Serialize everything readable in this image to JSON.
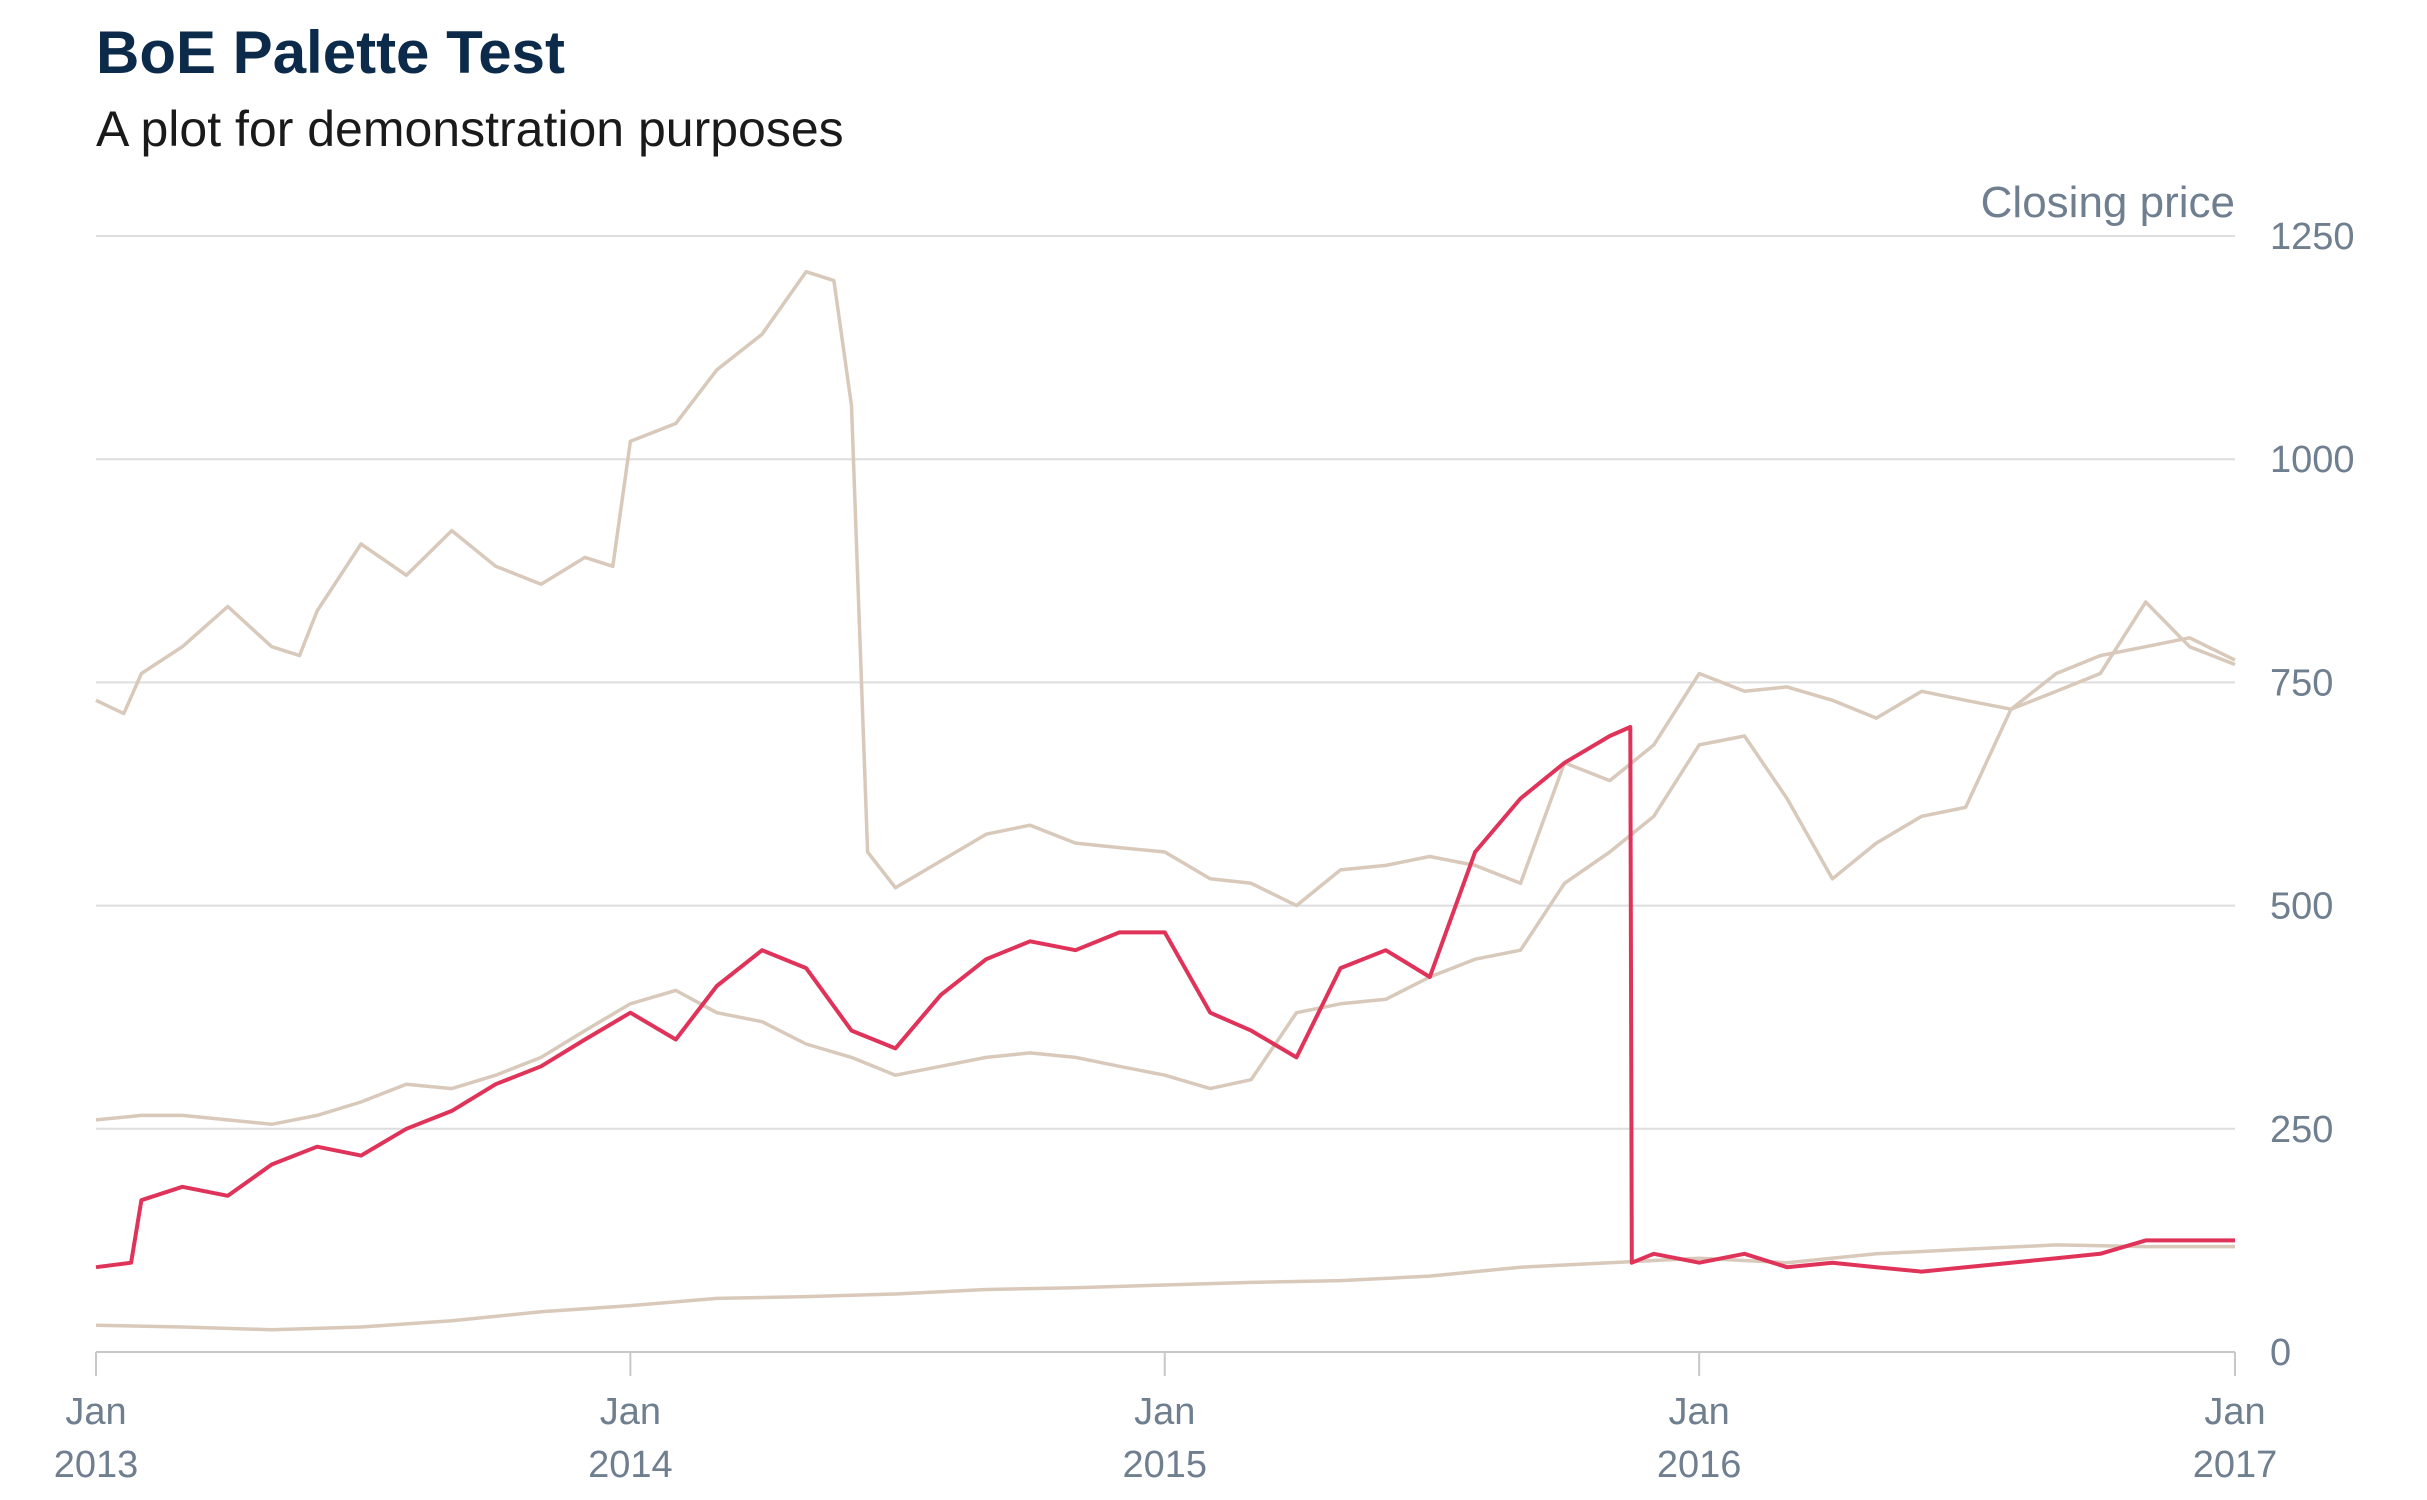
{
  "title": "BoE Palette Test",
  "subtitle": "A plot for demonstration purposes",
  "colors": {
    "highlight": "#e0335a",
    "muted": "#d8c9bb",
    "grid": "#dedede",
    "text": "#6f7f8f",
    "title": "#0c2a4a"
  },
  "chart_data": {
    "type": "line",
    "title": "BoE Palette Test",
    "subtitle": "A plot for demonstration purposes",
    "ylabel": "Closing price",
    "ylim": [
      0,
      1250
    ],
    "yticks": [
      0,
      250,
      500,
      750,
      1000,
      1250
    ],
    "xlim": [
      "2013-01-01",
      "2017-01-01"
    ],
    "xticks": [
      {
        "date": "2013-01-01",
        "label1": "Jan",
        "label2": "2013"
      },
      {
        "date": "2014-01-01",
        "label1": "Jan",
        "label2": "2014"
      },
      {
        "date": "2015-01-01",
        "label1": "Jan",
        "label2": "2015"
      },
      {
        "date": "2016-01-01",
        "label1": "Jan",
        "label2": "2016"
      },
      {
        "date": "2017-01-01",
        "label1": "Jan",
        "label2": "2017"
      }
    ],
    "grid": true,
    "y_axis_position": "right",
    "series": [
      {
        "highlight": false,
        "points": [
          [
            "2013-01-01",
            730
          ],
          [
            "2013-01-20",
            715
          ],
          [
            "2013-02-01",
            760
          ],
          [
            "2013-03-01",
            790
          ],
          [
            "2013-04-01",
            835
          ],
          [
            "2013-05-01",
            790
          ],
          [
            "2013-05-20",
            780
          ],
          [
            "2013-06-01",
            830
          ],
          [
            "2013-07-01",
            905
          ],
          [
            "2013-08-01",
            870
          ],
          [
            "2013-09-01",
            920
          ],
          [
            "2013-10-01",
            880
          ],
          [
            "2013-11-01",
            860
          ],
          [
            "2013-12-01",
            890
          ],
          [
            "2013-12-20",
            880
          ],
          [
            "2014-01-01",
            1020
          ],
          [
            "2014-02-01",
            1040
          ],
          [
            "2014-03-01",
            1100
          ],
          [
            "2014-04-01",
            1140
          ],
          [
            "2014-05-01",
            1210
          ],
          [
            "2014-05-20",
            1200
          ],
          [
            "2014-06-01",
            1060
          ],
          [
            "2014-06-12",
            560
          ],
          [
            "2014-07-01",
            520
          ],
          [
            "2014-08-01",
            550
          ],
          [
            "2014-09-01",
            580
          ],
          [
            "2014-10-01",
            590
          ],
          [
            "2014-11-01",
            570
          ],
          [
            "2014-12-01",
            565
          ],
          [
            "2015-01-01",
            560
          ],
          [
            "2015-02-01",
            530
          ],
          [
            "2015-03-01",
            525
          ],
          [
            "2015-04-01",
            500
          ],
          [
            "2015-05-01",
            540
          ],
          [
            "2015-06-01",
            545
          ],
          [
            "2015-07-01",
            555
          ],
          [
            "2015-08-01",
            545
          ],
          [
            "2015-09-01",
            525
          ],
          [
            "2015-10-01",
            660
          ],
          [
            "2015-11-01",
            640
          ],
          [
            "2015-12-01",
            680
          ],
          [
            "2016-01-01",
            760
          ],
          [
            "2016-02-01",
            740
          ],
          [
            "2016-03-01",
            745
          ],
          [
            "2016-04-01",
            730
          ],
          [
            "2016-05-01",
            710
          ],
          [
            "2016-06-01",
            740
          ],
          [
            "2016-07-01",
            730
          ],
          [
            "2016-08-01",
            720
          ],
          [
            "2016-09-01",
            760
          ],
          [
            "2016-10-01",
            780
          ],
          [
            "2016-11-01",
            790
          ],
          [
            "2016-12-01",
            800
          ],
          [
            "2017-01-01",
            775
          ]
        ]
      },
      {
        "highlight": false,
        "points": [
          [
            "2013-01-01",
            260
          ],
          [
            "2013-02-01",
            265
          ],
          [
            "2013-03-01",
            265
          ],
          [
            "2013-04-01",
            260
          ],
          [
            "2013-05-01",
            255
          ],
          [
            "2013-06-01",
            265
          ],
          [
            "2013-07-01",
            280
          ],
          [
            "2013-08-01",
            300
          ],
          [
            "2013-09-01",
            295
          ],
          [
            "2013-10-01",
            310
          ],
          [
            "2013-11-01",
            330
          ],
          [
            "2013-12-01",
            360
          ],
          [
            "2014-01-01",
            390
          ],
          [
            "2014-02-01",
            405
          ],
          [
            "2014-03-01",
            380
          ],
          [
            "2014-04-01",
            370
          ],
          [
            "2014-05-01",
            345
          ],
          [
            "2014-06-01",
            330
          ],
          [
            "2014-07-01",
            310
          ],
          [
            "2014-08-01",
            320
          ],
          [
            "2014-09-01",
            330
          ],
          [
            "2014-10-01",
            335
          ],
          [
            "2014-11-01",
            330
          ],
          [
            "2014-12-01",
            320
          ],
          [
            "2015-01-01",
            310
          ],
          [
            "2015-02-01",
            295
          ],
          [
            "2015-03-01",
            305
          ],
          [
            "2015-04-01",
            380
          ],
          [
            "2015-05-01",
            390
          ],
          [
            "2015-06-01",
            395
          ],
          [
            "2015-07-01",
            420
          ],
          [
            "2015-08-01",
            440
          ],
          [
            "2015-09-01",
            450
          ],
          [
            "2015-10-01",
            525
          ],
          [
            "2015-11-01",
            560
          ],
          [
            "2015-12-01",
            600
          ],
          [
            "2016-01-01",
            680
          ],
          [
            "2016-02-01",
            690
          ],
          [
            "2016-03-01",
            620
          ],
          [
            "2016-04-01",
            530
          ],
          [
            "2016-05-01",
            570
          ],
          [
            "2016-06-01",
            600
          ],
          [
            "2016-07-01",
            610
          ],
          [
            "2016-08-01",
            720
          ],
          [
            "2016-09-01",
            740
          ],
          [
            "2016-10-01",
            760
          ],
          [
            "2016-11-01",
            840
          ],
          [
            "2016-12-01",
            790
          ],
          [
            "2017-01-01",
            770
          ]
        ]
      },
      {
        "highlight": false,
        "points": [
          [
            "2013-01-01",
            30
          ],
          [
            "2013-03-01",
            28
          ],
          [
            "2013-05-01",
            25
          ],
          [
            "2013-07-01",
            28
          ],
          [
            "2013-09-01",
            35
          ],
          [
            "2013-11-01",
            45
          ],
          [
            "2014-01-01",
            52
          ],
          [
            "2014-03-01",
            60
          ],
          [
            "2014-05-01",
            62
          ],
          [
            "2014-07-01",
            65
          ],
          [
            "2014-09-01",
            70
          ],
          [
            "2014-11-01",
            72
          ],
          [
            "2015-01-01",
            75
          ],
          [
            "2015-03-01",
            78
          ],
          [
            "2015-05-01",
            80
          ],
          [
            "2015-07-01",
            85
          ],
          [
            "2015-09-01",
            95
          ],
          [
            "2015-11-01",
            100
          ],
          [
            "2016-01-01",
            105
          ],
          [
            "2016-03-01",
            100
          ],
          [
            "2016-05-01",
            110
          ],
          [
            "2016-07-01",
            115
          ],
          [
            "2016-09-01",
            120
          ],
          [
            "2016-11-01",
            118
          ],
          [
            "2017-01-01",
            118
          ]
        ]
      },
      {
        "highlight": true,
        "points": [
          [
            "2013-01-01",
            95
          ],
          [
            "2013-01-25",
            100
          ],
          [
            "2013-02-01",
            170
          ],
          [
            "2013-03-01",
            185
          ],
          [
            "2013-04-01",
            175
          ],
          [
            "2013-05-01",
            210
          ],
          [
            "2013-06-01",
            230
          ],
          [
            "2013-07-01",
            220
          ],
          [
            "2013-08-01",
            250
          ],
          [
            "2013-09-01",
            270
          ],
          [
            "2013-10-01",
            300
          ],
          [
            "2013-11-01",
            320
          ],
          [
            "2013-12-01",
            350
          ],
          [
            "2014-01-01",
            380
          ],
          [
            "2014-02-01",
            350
          ],
          [
            "2014-03-01",
            410
          ],
          [
            "2014-04-01",
            450
          ],
          [
            "2014-05-01",
            430
          ],
          [
            "2014-06-01",
            360
          ],
          [
            "2014-07-01",
            340
          ],
          [
            "2014-08-01",
            400
          ],
          [
            "2014-09-01",
            440
          ],
          [
            "2014-10-01",
            460
          ],
          [
            "2014-11-01",
            450
          ],
          [
            "2014-12-01",
            470
          ],
          [
            "2015-01-01",
            470
          ],
          [
            "2015-02-01",
            380
          ],
          [
            "2015-03-01",
            360
          ],
          [
            "2015-04-01",
            330
          ],
          [
            "2015-05-01",
            430
          ],
          [
            "2015-06-01",
            450
          ],
          [
            "2015-07-01",
            420
          ],
          [
            "2015-08-01",
            560
          ],
          [
            "2015-09-01",
            620
          ],
          [
            "2015-10-01",
            660
          ],
          [
            "2015-11-01",
            690
          ],
          [
            "2015-11-15",
            700
          ],
          [
            "2015-11-16",
            100
          ],
          [
            "2015-12-01",
            110
          ],
          [
            "2016-01-01",
            100
          ],
          [
            "2016-02-01",
            110
          ],
          [
            "2016-03-01",
            95
          ],
          [
            "2016-04-01",
            100
          ],
          [
            "2016-05-01",
            95
          ],
          [
            "2016-06-01",
            90
          ],
          [
            "2016-07-01",
            95
          ],
          [
            "2016-08-01",
            100
          ],
          [
            "2016-09-01",
            105
          ],
          [
            "2016-10-01",
            110
          ],
          [
            "2016-11-01",
            125
          ],
          [
            "2016-12-01",
            125
          ],
          [
            "2017-01-01",
            125
          ]
        ]
      }
    ]
  }
}
